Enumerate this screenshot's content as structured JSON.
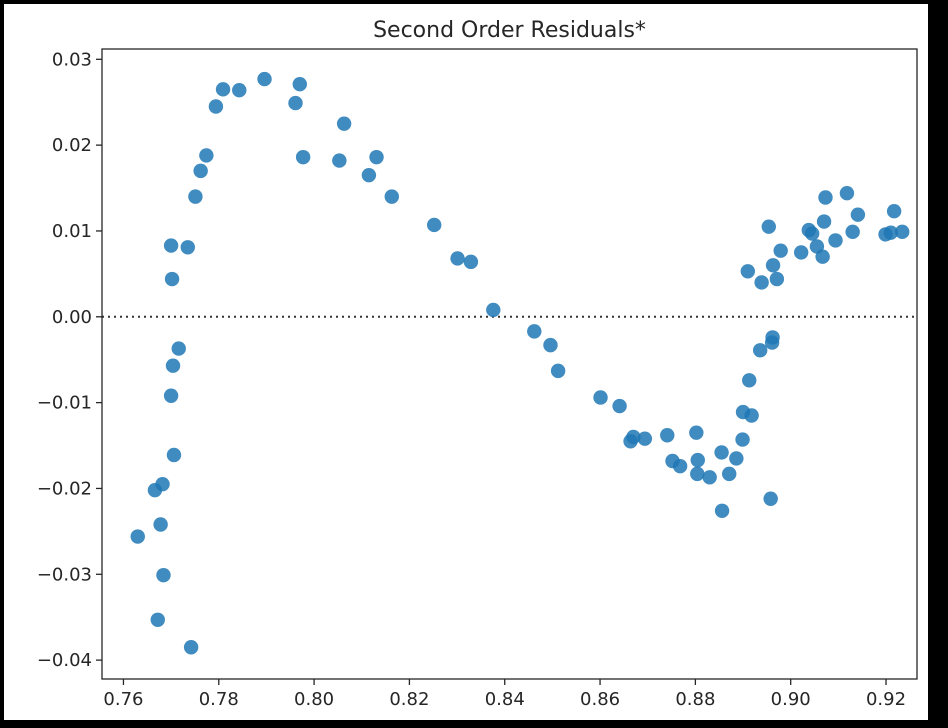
{
  "chart_data": {
    "type": "scatter",
    "title": "Second Order Residuals*",
    "xlabel": "",
    "ylabel": "",
    "xlim": [
      0.7555,
      0.9265
    ],
    "ylim": [
      -0.0422,
      0.0312
    ],
    "xticks": [
      0.76,
      0.78,
      0.8,
      0.82,
      0.84,
      0.86,
      0.88,
      0.9,
      0.92
    ],
    "xtick_labels": [
      "0.76",
      "0.78",
      "0.80",
      "0.82",
      "0.84",
      "0.86",
      "0.88",
      "0.90",
      "0.92"
    ],
    "yticks": [
      0.03,
      0.02,
      0.01,
      0.0,
      -0.01,
      -0.02,
      -0.03,
      -0.04
    ],
    "ytick_labels": [
      "0.03",
      "0.02",
      "0.01",
      "0.00",
      "−0.01",
      "−0.02",
      "−0.03",
      "−0.04"
    ],
    "reference_line": {
      "y": 0.0,
      "style": "dotted"
    },
    "grid": false,
    "colors": {
      "points": "#1f77b4",
      "reference_line": "#333333",
      "axes": "#262626"
    },
    "points": [
      [
        0.763,
        -0.0256
      ],
      [
        0.7666,
        -0.0202
      ],
      [
        0.7672,
        -0.0353
      ],
      [
        0.7678,
        -0.0242
      ],
      [
        0.7682,
        -0.0195
      ],
      [
        0.7684,
        -0.0301
      ],
      [
        0.77,
        0.0083
      ],
      [
        0.77,
        -0.0092
      ],
      [
        0.7702,
        0.0044
      ],
      [
        0.7704,
        -0.0057
      ],
      [
        0.7706,
        -0.0161
      ],
      [
        0.7716,
        -0.0037
      ],
      [
        0.7735,
        0.0081
      ],
      [
        0.7742,
        -0.0385
      ],
      [
        0.7751,
        0.014
      ],
      [
        0.7762,
        0.017
      ],
      [
        0.7774,
        0.0188
      ],
      [
        0.7794,
        0.0245
      ],
      [
        0.7809,
        0.0265
      ],
      [
        0.7843,
        0.0264
      ],
      [
        0.7896,
        0.0277
      ],
      [
        0.7961,
        0.0249
      ],
      [
        0.797,
        0.0271
      ],
      [
        0.7977,
        0.0186
      ],
      [
        0.8053,
        0.0182
      ],
      [
        0.8063,
        0.0225
      ],
      [
        0.8115,
        0.0165
      ],
      [
        0.8131,
        0.0186
      ],
      [
        0.8163,
        0.014
      ],
      [
        0.8252,
        0.0107
      ],
      [
        0.8301,
        0.0068
      ],
      [
        0.8329,
        0.0064
      ],
      [
        0.8376,
        0.0008
      ],
      [
        0.8462,
        -0.0017
      ],
      [
        0.8496,
        -0.0033
      ],
      [
        0.8512,
        -0.0063
      ],
      [
        0.8601,
        -0.0094
      ],
      [
        0.8641,
        -0.0104
      ],
      [
        0.8664,
        -0.0145
      ],
      [
        0.867,
        -0.014
      ],
      [
        0.8694,
        -0.0142
      ],
      [
        0.8741,
        -0.0138
      ],
      [
        0.8752,
        -0.0168
      ],
      [
        0.8768,
        -0.0174
      ],
      [
        0.8802,
        -0.0135
      ],
      [
        0.8804,
        -0.0183
      ],
      [
        0.8805,
        -0.0167
      ],
      [
        0.883,
        -0.0187
      ],
      [
        0.8855,
        -0.0158
      ],
      [
        0.8856,
        -0.0226
      ],
      [
        0.8871,
        -0.0183
      ],
      [
        0.8886,
        -0.0165
      ],
      [
        0.8899,
        -0.0143
      ],
      [
        0.89,
        -0.0111
      ],
      [
        0.891,
        0.0053
      ],
      [
        0.8913,
        -0.0074
      ],
      [
        0.8918,
        -0.0115
      ],
      [
        0.8936,
        -0.0039
      ],
      [
        0.8939,
        0.004
      ],
      [
        0.8954,
        0.0105
      ],
      [
        0.8958,
        -0.0212
      ],
      [
        0.8961,
        -0.003
      ],
      [
        0.8962,
        -0.0024
      ],
      [
        0.8963,
        0.006
      ],
      [
        0.8971,
        0.0044
      ],
      [
        0.8979,
        0.0077
      ],
      [
        0.9022,
        0.0075
      ],
      [
        0.9038,
        0.0101
      ],
      [
        0.9045,
        0.0097
      ],
      [
        0.9055,
        0.0082
      ],
      [
        0.9067,
        0.007
      ],
      [
        0.907,
        0.0111
      ],
      [
        0.9073,
        0.0139
      ],
      [
        0.9094,
        0.0089
      ],
      [
        0.9118,
        0.0144
      ],
      [
        0.913,
        0.0099
      ],
      [
        0.9141,
        0.0119
      ],
      [
        0.9199,
        0.0096
      ],
      [
        0.921,
        0.0098
      ],
      [
        0.9217,
        0.0123
      ],
      [
        0.9234,
        0.0099
      ]
    ]
  }
}
